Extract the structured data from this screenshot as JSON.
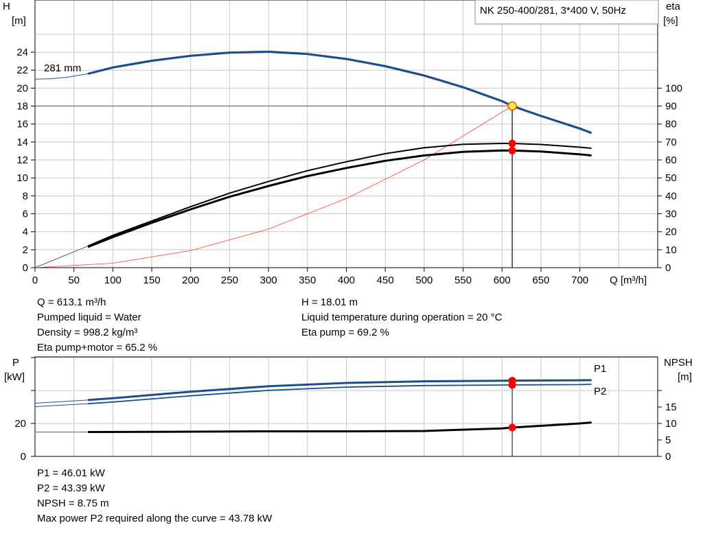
{
  "pump_name": "NK 250-400/281, 3*400 V, 50Hz",
  "colors": {
    "head": "#1b4f8c",
    "efficiency": "#000000",
    "system": "#ff3b3b",
    "duty_point": "#ff0000",
    "power": "#1b4f8c",
    "npsh": "#000000",
    "grid": "#c8c8c8"
  },
  "chart_data": [
    {
      "type": "line",
      "labels": {
        "y_left": "H",
        "y_left_unit": "[m]",
        "y_right": "eta",
        "y_right_unit": "[%]",
        "x": "Q [m³/h]",
        "impeller": "281 mm"
      },
      "xlim": [
        0,
        800
      ],
      "ylim_left": [
        0,
        28
      ],
      "ylim_right": [
        0,
        140
      ],
      "x_ticks": [
        0,
        50,
        100,
        150,
        200,
        250,
        300,
        350,
        400,
        450,
        500,
        550,
        600,
        650,
        700
      ],
      "y_left_ticks": [
        0,
        2,
        4,
        6,
        8,
        10,
        12,
        14,
        16,
        18,
        20,
        22,
        24
      ],
      "y_right_ticks": [
        0,
        10,
        20,
        30,
        40,
        50,
        60,
        70,
        80,
        90,
        100
      ],
      "grid": true,
      "series": [
        {
          "id": "head",
          "axis": "left",
          "x": [
            68,
            100,
            150,
            200,
            250,
            300,
            350,
            400,
            450,
            500,
            550,
            600,
            613.1,
            650,
            700,
            715
          ],
          "y": [
            21.6,
            22.3,
            23.05,
            23.6,
            23.95,
            24.05,
            23.8,
            23.25,
            22.45,
            21.4,
            20.1,
            18.55,
            18.01,
            16.9,
            15.5,
            15.0
          ]
        },
        {
          "id": "head_extrapolated",
          "axis": "left",
          "x": [
            0,
            20,
            40,
            68
          ],
          "y": [
            21.0,
            21.05,
            21.2,
            21.6
          ]
        },
        {
          "id": "eta_pump",
          "axis": "right",
          "x": [
            68,
            100,
            150,
            200,
            250,
            300,
            350,
            400,
            450,
            500,
            550,
            600,
            613.1,
            650,
            700,
            715
          ],
          "y": [
            12,
            18,
            26,
            34,
            41.5,
            48,
            54,
            59,
            63.5,
            66.8,
            68.7,
            69.2,
            69.2,
            68.6,
            67.1,
            66.5
          ]
        },
        {
          "id": "eta_pump_motor",
          "axis": "right",
          "x": [
            68,
            100,
            150,
            200,
            250,
            300,
            350,
            400,
            450,
            500,
            550,
            600,
            613.1,
            650,
            700,
            715
          ],
          "y": [
            11.5,
            17,
            25,
            32.5,
            39.5,
            45.5,
            51,
            55.5,
            59.5,
            62.5,
            64.5,
            65.3,
            65.2,
            64.7,
            63.1,
            62.5
          ]
        },
        {
          "id": "eta_extrapolated",
          "axis": "right",
          "x": [
            0,
            68
          ],
          "y": [
            0,
            12
          ]
        },
        {
          "id": "system_curve",
          "axis": "left",
          "x": [
            0,
            100,
            200,
            300,
            400,
            500,
            613.1
          ],
          "y": [
            0,
            0.5,
            1.9,
            4.3,
            7.7,
            12.0,
            18.01
          ]
        }
      ],
      "duty_point": {
        "x": 613.1,
        "y": 18.01
      },
      "eta_points": [
        69.2,
        65.2
      ]
    },
    {
      "type": "line",
      "labels": {
        "y_left": "P",
        "y_left_unit": "[kW]",
        "y_right": "NPSH",
        "y_right_unit": "[m]",
        "p1": "P1",
        "p2": "P2"
      },
      "xlim": [
        0,
        800
      ],
      "ylim_left": [
        0,
        70
      ],
      "ylim_right": [
        0,
        35
      ],
      "y_left_ticks": [
        0,
        20
      ],
      "y_right_ticks": [
        0,
        5,
        10,
        15
      ],
      "grid": true,
      "series": [
        {
          "id": "P1",
          "axis": "left",
          "x": [
            68,
            100,
            200,
            300,
            400,
            500,
            600,
            613.1,
            700,
            715
          ],
          "y": [
            34.2,
            35.3,
            39.3,
            42.6,
            44.6,
            45.6,
            45.9,
            46.01,
            46.2,
            46.3
          ]
        },
        {
          "id": "P2",
          "axis": "left",
          "x": [
            68,
            100,
            200,
            300,
            400,
            500,
            600,
            613.1,
            700,
            715
          ],
          "y": [
            32.0,
            33.0,
            36.8,
            40.1,
            42.1,
            43.0,
            43.35,
            43.39,
            43.6,
            43.78
          ]
        },
        {
          "id": "P1_extrapolated",
          "axis": "left",
          "x": [
            0,
            68
          ],
          "y": [
            32.3,
            34.2
          ]
        },
        {
          "id": "P2_extrapolated",
          "axis": "left",
          "x": [
            0,
            68
          ],
          "y": [
            30.2,
            32.0
          ]
        },
        {
          "id": "NPSH",
          "axis": "right",
          "x": [
            68,
            200,
            300,
            400,
            500,
            600,
            613.1,
            700,
            715
          ],
          "y": [
            7.4,
            7.5,
            7.6,
            7.6,
            7.7,
            8.5,
            8.75,
            10.0,
            10.3
          ]
        },
        {
          "id": "NPSH_extrapolated",
          "axis": "right",
          "x": [
            0,
            68
          ],
          "y": [
            7.4,
            7.4
          ]
        }
      ],
      "duty_points": {
        "P1": 46.01,
        "P2": 43.39,
        "NPSH": 8.75
      }
    }
  ],
  "results_upper_left": [
    "Q = 613.1 m³/h",
    "Pumped liquid = Water",
    "Density = 998.2 kg/m³",
    "Eta pump+motor = 65.2 %"
  ],
  "results_upper_right": [
    "H = 18.01 m",
    "Liquid temperature during operation = 20 °C",
    "Eta pump = 69.2 %"
  ],
  "results_lower": [
    "P1 = 46.01 kW",
    "P2 = 43.39 kW",
    "NPSH = 8.75 m",
    "Max power P2 required along the curve = 43.78 kW"
  ]
}
